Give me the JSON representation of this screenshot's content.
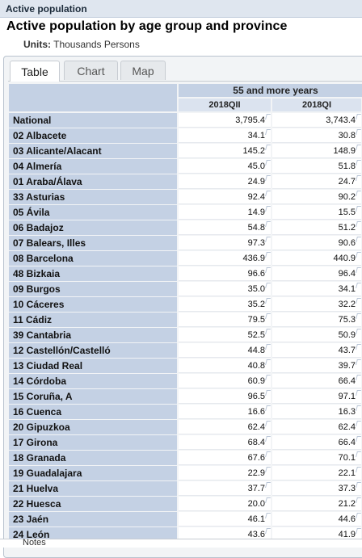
{
  "header": {
    "section": "Active population"
  },
  "title": "Active population by age group and province",
  "units": {
    "label": "Units:",
    "value": "Thousands Persons"
  },
  "tabs": [
    {
      "label": "Table",
      "active": true
    },
    {
      "label": "Chart",
      "active": false
    },
    {
      "label": "Map",
      "active": false
    }
  ],
  "table": {
    "group_header": "55 and more years",
    "columns": [
      "2018QII",
      "2018QI"
    ],
    "rows": [
      {
        "label": "National",
        "values": [
          "3,795.4",
          "3,743.4"
        ]
      },
      {
        "label": "02 Albacete",
        "values": [
          "34.1",
          "30.8"
        ]
      },
      {
        "label": "03 Alicante/Alacant",
        "values": [
          "145.2",
          "148.9"
        ]
      },
      {
        "label": "04 Almería",
        "values": [
          "45.0",
          "51.8"
        ]
      },
      {
        "label": "01 Araba/Álava",
        "values": [
          "24.9",
          "24.7"
        ]
      },
      {
        "label": "33 Asturias",
        "values": [
          "92.4",
          "90.2"
        ]
      },
      {
        "label": "05 Ávila",
        "values": [
          "14.9",
          "15.5"
        ]
      },
      {
        "label": "06 Badajoz",
        "values": [
          "54.8",
          "51.2"
        ]
      },
      {
        "label": "07 Balears, Illes",
        "values": [
          "97.3",
          "90.6"
        ]
      },
      {
        "label": "08 Barcelona",
        "values": [
          "436.9",
          "440.9"
        ]
      },
      {
        "label": "48 Bizkaia",
        "values": [
          "96.6",
          "96.4"
        ]
      },
      {
        "label": "09 Burgos",
        "values": [
          "35.0",
          "34.1"
        ]
      },
      {
        "label": "10 Cáceres",
        "values": [
          "35.2",
          "32.2"
        ]
      },
      {
        "label": "11 Cádiz",
        "values": [
          "79.5",
          "75.3"
        ]
      },
      {
        "label": "39 Cantabria",
        "values": [
          "52.5",
          "50.9"
        ]
      },
      {
        "label": "12 Castellón/Castelló",
        "values": [
          "44.8",
          "43.7"
        ]
      },
      {
        "label": "13 Ciudad Real",
        "values": [
          "40.8",
          "39.7"
        ]
      },
      {
        "label": "14 Córdoba",
        "values": [
          "60.9",
          "66.4"
        ]
      },
      {
        "label": "15 Coruña, A",
        "values": [
          "96.5",
          "97.1"
        ]
      },
      {
        "label": "16 Cuenca",
        "values": [
          "16.6",
          "16.3"
        ]
      },
      {
        "label": "20 Gipuzkoa",
        "values": [
          "62.4",
          "62.4"
        ]
      },
      {
        "label": "17 Girona",
        "values": [
          "68.4",
          "66.4"
        ]
      },
      {
        "label": "18 Granada",
        "values": [
          "67.6",
          "70.1"
        ]
      },
      {
        "label": "19 Guadalajara",
        "values": [
          "22.9",
          "22.1"
        ]
      },
      {
        "label": "21 Huelva",
        "values": [
          "37.7",
          "37.3"
        ]
      },
      {
        "label": "22 Huesca",
        "values": [
          "20.0",
          "21.2"
        ]
      },
      {
        "label": "23 Jaén",
        "values": [
          "46.1",
          "44.6"
        ]
      },
      {
        "label": "24 León",
        "values": [
          "43.6",
          "41.9"
        ]
      }
    ]
  },
  "footer": {
    "text": "Notes"
  },
  "colors": {
    "row_header_bg": "#c4d1e4",
    "topbar_bg": "#dfe6ef"
  }
}
